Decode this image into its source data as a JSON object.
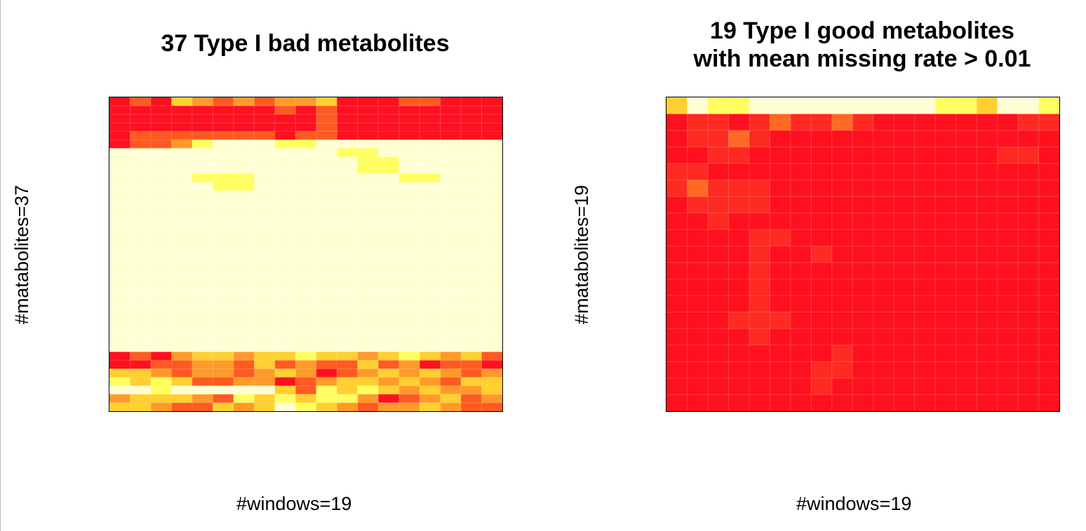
{
  "chart_data": [
    {
      "type": "heatmap",
      "title": [
        "37 Type I bad metabolites"
      ],
      "xlabel": "#windows=19",
      "ylabel": "#matabolites=37",
      "n_cols": 19,
      "n_rows": 37,
      "colorscale": [
        "#ffffd4",
        "#ffff60",
        "#ffd030",
        "#ff9a2a",
        "#ff5a22",
        "#ff1020"
      ],
      "blocks": [
        {
          "row_from": 6,
          "row_to": 23,
          "value": 0
        },
        {
          "row_from": 25,
          "row_to": 27,
          "value": 0
        }
      ],
      "rows": {
        "0": [
          5,
          4,
          5,
          2,
          3,
          4,
          3,
          4,
          3,
          3,
          2,
          5,
          5,
          5,
          4,
          4,
          5,
          5,
          5
        ],
        "1": [
          5,
          5,
          5,
          5,
          5,
          5,
          5,
          5,
          4,
          5,
          4,
          5,
          5,
          5,
          5,
          5,
          5,
          5,
          5
        ],
        "2": [
          5,
          5,
          5,
          5,
          5,
          5,
          5,
          5,
          5,
          5,
          4,
          5,
          5,
          5,
          5,
          5,
          5,
          5,
          5
        ],
        "3": [
          5,
          5,
          5,
          5,
          5,
          5,
          5,
          5,
          5,
          5,
          4,
          5,
          5,
          5,
          5,
          5,
          5,
          5,
          5
        ],
        "4": [
          5,
          4,
          4,
          4,
          4,
          4,
          4,
          4,
          5,
          4,
          4,
          5,
          5,
          5,
          5,
          5,
          5,
          5,
          5
        ],
        "5": [
          5,
          4,
          4,
          3,
          1,
          0,
          0,
          0,
          1,
          1,
          0,
          0,
          0,
          0,
          0,
          0,
          0,
          0,
          0
        ],
        "6": [
          0,
          0,
          0,
          0,
          0,
          0,
          0,
          0,
          0,
          0,
          0,
          1,
          1,
          0,
          0,
          0,
          0,
          0,
          0
        ],
        "7": [
          0,
          0,
          0,
          0,
          0,
          0,
          0,
          0,
          0,
          0,
          0,
          0,
          1,
          1,
          0,
          0,
          0,
          0,
          0
        ],
        "8": [
          0,
          0,
          0,
          0,
          0,
          0,
          0,
          0,
          0,
          0,
          0,
          0,
          1,
          1,
          0,
          0,
          0,
          0,
          0
        ],
        "9": [
          0,
          0,
          0,
          0,
          1,
          1,
          1,
          0,
          0,
          0,
          0,
          0,
          0,
          0,
          1,
          1,
          0,
          0,
          0
        ],
        "10": [
          0,
          0,
          0,
          0,
          0,
          1,
          1,
          0,
          0,
          0,
          0,
          0,
          0,
          0,
          0,
          0,
          0,
          0,
          0
        ],
        "30": [
          5,
          4,
          5,
          3,
          2,
          2,
          3,
          2,
          2,
          1,
          2,
          2,
          3,
          2,
          1,
          2,
          3,
          2,
          4
        ],
        "31": [
          5,
          5,
          4,
          4,
          3,
          3,
          4,
          2,
          4,
          3,
          4,
          4,
          2,
          4,
          3,
          5,
          4,
          4,
          5
        ],
        "32": [
          2,
          2,
          3,
          4,
          3,
          3,
          4,
          3,
          2,
          3,
          5,
          4,
          3,
          2,
          3,
          2,
          3,
          4,
          3
        ],
        "33": [
          1,
          2,
          1,
          2,
          4,
          4,
          3,
          3,
          5,
          4,
          3,
          2,
          2,
          3,
          2,
          3,
          4,
          2,
          2
        ],
        "34": [
          0,
          0,
          1,
          0,
          0,
          0,
          0,
          0,
          2,
          4,
          1,
          2,
          1,
          2,
          3,
          2,
          3,
          3,
          2
        ],
        "35": [
          3,
          2,
          2,
          2,
          3,
          4,
          1,
          2,
          1,
          2,
          1,
          1,
          3,
          5,
          4,
          3,
          2,
          4,
          3
        ],
        "36": [
          2,
          2,
          3,
          4,
          4,
          2,
          3,
          2,
          0,
          1,
          2,
          3,
          4,
          3,
          3,
          2,
          3,
          4,
          4
        ]
      }
    },
    {
      "type": "heatmap",
      "title": [
        "19 Type I good metabolites",
        "with mean missing rate > 0.01"
      ],
      "xlabel": "#windows=19",
      "ylabel": "#matabolites=19",
      "n_cols": 19,
      "n_rows": 19,
      "colorscale": [
        "#fffdd4",
        "#ffff60",
        "#ffcf30",
        "#ff8a2a",
        "#ff6a24",
        "#ff2a22",
        "#ff101e"
      ],
      "blocks": [
        {
          "row_from": 1,
          "row_to": 18,
          "value": 6
        }
      ],
      "rows": {
        "0": [
          2,
          0,
          1,
          1,
          0,
          0,
          0,
          0,
          0,
          0,
          0,
          0,
          0,
          1,
          1,
          2,
          0,
          0,
          1
        ],
        "1": [
          6,
          5,
          5,
          6,
          5,
          4,
          5,
          5,
          4,
          5,
          6,
          6,
          6,
          6,
          6,
          6,
          6,
          5,
          5
        ],
        "2": [
          6,
          5,
          5,
          4,
          5,
          6,
          6,
          6,
          6,
          6,
          6,
          6,
          6,
          6,
          6,
          6,
          6,
          6,
          6
        ],
        "3": [
          6,
          6,
          5,
          5,
          6,
          6,
          6,
          6,
          6,
          6,
          6,
          6,
          6,
          6,
          6,
          6,
          5,
          5,
          6
        ],
        "4": [
          5,
          5,
          6,
          6,
          6,
          6,
          6,
          6,
          6,
          6,
          6,
          6,
          6,
          6,
          6,
          6,
          6,
          6,
          6
        ],
        "5": [
          5,
          4,
          5,
          5,
          5,
          6,
          6,
          6,
          6,
          6,
          6,
          6,
          6,
          6,
          6,
          6,
          6,
          6,
          6
        ],
        "6": [
          6,
          5,
          5,
          5,
          5,
          6,
          6,
          6,
          6,
          6,
          6,
          6,
          6,
          6,
          6,
          6,
          6,
          6,
          6
        ],
        "7": [
          6,
          6,
          5,
          6,
          6,
          6,
          6,
          6,
          6,
          6,
          6,
          6,
          6,
          6,
          6,
          6,
          6,
          6,
          6
        ],
        "8": [
          6,
          6,
          6,
          6,
          5,
          5,
          6,
          6,
          6,
          6,
          6,
          6,
          6,
          6,
          6,
          6,
          6,
          6,
          6
        ],
        "9": [
          6,
          6,
          6,
          6,
          5,
          6,
          6,
          5,
          6,
          6,
          6,
          6,
          6,
          6,
          6,
          6,
          6,
          6,
          6
        ],
        "10": [
          6,
          6,
          6,
          6,
          5,
          6,
          6,
          6,
          6,
          6,
          6,
          6,
          6,
          6,
          6,
          6,
          6,
          6,
          6
        ],
        "11": [
          6,
          6,
          6,
          6,
          5,
          6,
          6,
          6,
          6,
          6,
          6,
          6,
          6,
          6,
          6,
          6,
          6,
          6,
          6
        ],
        "12": [
          6,
          6,
          6,
          6,
          5,
          6,
          6,
          6,
          6,
          6,
          6,
          6,
          6,
          6,
          6,
          6,
          6,
          6,
          6
        ],
        "13": [
          6,
          6,
          6,
          5,
          5,
          5,
          6,
          6,
          6,
          6,
          6,
          6,
          6,
          6,
          6,
          6,
          6,
          6,
          6
        ],
        "14": [
          6,
          6,
          6,
          6,
          5,
          6,
          6,
          6,
          6,
          6,
          6,
          6,
          6,
          6,
          6,
          6,
          6,
          6,
          6
        ],
        "15": [
          6,
          6,
          6,
          6,
          6,
          6,
          6,
          6,
          5,
          6,
          6,
          6,
          6,
          6,
          6,
          6,
          6,
          6,
          6
        ],
        "16": [
          6,
          6,
          6,
          6,
          6,
          6,
          6,
          5,
          5,
          6,
          6,
          6,
          6,
          6,
          6,
          6,
          6,
          6,
          6
        ],
        "17": [
          6,
          6,
          6,
          6,
          6,
          6,
          6,
          5,
          6,
          6,
          6,
          6,
          6,
          6,
          6,
          6,
          6,
          6,
          6
        ]
      }
    }
  ]
}
